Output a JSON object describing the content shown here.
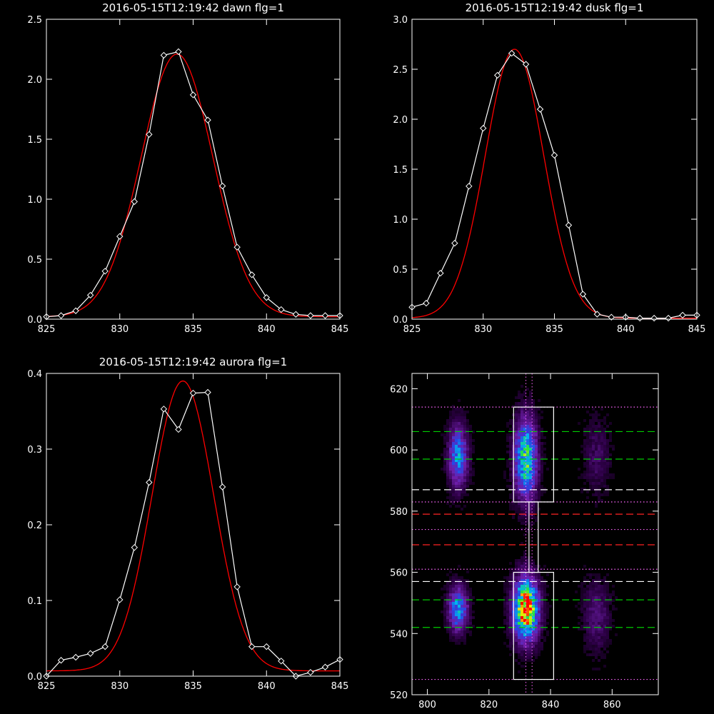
{
  "chart_data": [
    {
      "type": "line",
      "title": "2016-05-15T12:19:42 dawn flg=1",
      "xlim": [
        825,
        845
      ],
      "ylim": [
        0,
        2.5
      ],
      "xticks": [
        "825",
        "830",
        "835",
        "840",
        "845"
      ],
      "yticks": [
        "0.0",
        "0.5",
        "1.0",
        "1.5",
        "2.0",
        "2.5"
      ],
      "colors": {
        "observed": "#ffffff",
        "fit": "#ff0000"
      },
      "fit": {
        "amplitude": 2.19,
        "center": 833.9,
        "sigma": 2.45,
        "baseline": 0.02
      },
      "series": [
        {
          "x": [
            825,
            826,
            827,
            828,
            829,
            830,
            831,
            832,
            833,
            834,
            835,
            836,
            837,
            838,
            839,
            840,
            841,
            842,
            843,
            844,
            845
          ],
          "values": [
            0.02,
            0.03,
            0.07,
            0.2,
            0.4,
            0.69,
            0.98,
            1.54,
            2.2,
            2.23,
            1.87,
            1.66,
            1.11,
            0.6,
            0.37,
            0.18,
            0.08,
            0.04,
            0.03,
            0.03,
            0.03
          ]
        }
      ]
    },
    {
      "type": "line",
      "title": "2016-05-15T12:19:42 dusk flg=1",
      "xlim": [
        825,
        845
      ],
      "ylim": [
        0,
        3.0
      ],
      "xticks": [
        "825",
        "830",
        "835",
        "840",
        "845"
      ],
      "yticks": [
        "0.0",
        "0.5",
        "1.0",
        "1.5",
        "2.0",
        "2.5",
        "3.0"
      ],
      "colors": {
        "observed": "#ffffff",
        "fit": "#ff0000"
      },
      "fit": {
        "amplitude": 2.69,
        "center": 832.2,
        "sigma": 2.05,
        "baseline": 0.01
      },
      "series": [
        {
          "x": [
            825,
            826,
            827,
            828,
            829,
            830,
            831,
            832,
            833,
            834,
            835,
            836,
            837,
            838,
            839,
            840,
            841,
            842,
            843,
            844,
            845
          ],
          "values": [
            0.12,
            0.16,
            0.46,
            0.76,
            1.33,
            1.91,
            2.44,
            2.66,
            2.55,
            2.1,
            1.64,
            0.94,
            0.25,
            0.05,
            0.02,
            0.02,
            0.01,
            0.01,
            0.01,
            0.04,
            0.04
          ]
        }
      ]
    },
    {
      "type": "line",
      "title": "2016-05-15T12:19:42 aurora flg=1",
      "xlim": [
        825,
        845
      ],
      "ylim": [
        0,
        0.4
      ],
      "xticks": [
        "825",
        "830",
        "835",
        "840",
        "845"
      ],
      "yticks": [
        "0.0",
        "0.1",
        "0.2",
        "0.3",
        "0.4"
      ],
      "colors": {
        "observed": "#ffffff",
        "fit": "#ff0000"
      },
      "fit": {
        "amplitude": 0.383,
        "center": 834.3,
        "sigma": 2.1,
        "baseline": 0.007
      },
      "series": [
        {
          "x": [
            825,
            826,
            827,
            828,
            829,
            830,
            831,
            832,
            833,
            834,
            835,
            836,
            837,
            838,
            839,
            840,
            841,
            842,
            843,
            844,
            845
          ],
          "values": [
            0.0,
            0.021,
            0.025,
            0.03,
            0.039,
            0.101,
            0.17,
            0.256,
            0.353,
            0.326,
            0.374,
            0.375,
            0.25,
            0.118,
            0.039,
            0.039,
            0.02,
            0.0,
            0.005,
            0.012,
            0.022
          ]
        }
      ]
    },
    {
      "type": "heatmap",
      "title": "",
      "xlim": [
        795,
        875
      ],
      "ylim": [
        520,
        625
      ],
      "xticks": [
        "800",
        "820",
        "840",
        "860"
      ],
      "yticks": [
        "520",
        "540",
        "560",
        "580",
        "600",
        "620"
      ],
      "blobs": [
        {
          "x": 810,
          "y": 548,
          "amp": 0.55,
          "sx": 2.2,
          "sy": 5
        },
        {
          "x": 810,
          "y": 598,
          "amp": 0.5,
          "sx": 2.2,
          "sy": 7
        },
        {
          "x": 832,
          "y": 548,
          "amp": 1.0,
          "sx": 2.8,
          "sy": 7
        },
        {
          "x": 832,
          "y": 597,
          "amp": 0.7,
          "sx": 2.5,
          "sy": 9
        },
        {
          "x": 855,
          "y": 546,
          "amp": 0.18,
          "sx": 3,
          "sy": 8
        },
        {
          "x": 855,
          "y": 598,
          "amp": 0.14,
          "sx": 3,
          "sy": 8
        }
      ],
      "boxes": [
        {
          "x": [
            828,
            841
          ],
          "y": [
            525,
            560
          ]
        },
        {
          "x": [
            828,
            841
          ],
          "y": [
            583,
            614
          ]
        }
      ],
      "connector_x": [
        833,
        836
      ],
      "connector_y": [
        560,
        583
      ],
      "vertical_dotted_x": [
        832,
        834
      ],
      "hlines": [
        {
          "y": 614,
          "color": "#ff66ff",
          "style": "dotted"
        },
        {
          "y": 606,
          "color": "#00cc00",
          "style": "dashed"
        },
        {
          "y": 597,
          "color": "#00cc00",
          "style": "dashed"
        },
        {
          "y": 587,
          "color": "#ffffff",
          "style": "dashed"
        },
        {
          "y": 583,
          "color": "#ff66ff",
          "style": "dotted"
        },
        {
          "y": 579,
          "color": "#ff2222",
          "style": "dashed"
        },
        {
          "y": 574,
          "color": "#ff66ff",
          "style": "dotted"
        },
        {
          "y": 569,
          "color": "#ff2222",
          "style": "dashed"
        },
        {
          "y": 561,
          "color": "#ff66ff",
          "style": "dotted"
        },
        {
          "y": 557,
          "color": "#ffffff",
          "style": "dashed"
        },
        {
          "y": 551,
          "color": "#00cc00",
          "style": "dashed"
        },
        {
          "y": 542,
          "color": "#00cc00",
          "style": "dashed"
        },
        {
          "y": 525,
          "color": "#ff66ff",
          "style": "dotted"
        }
      ]
    }
  ]
}
